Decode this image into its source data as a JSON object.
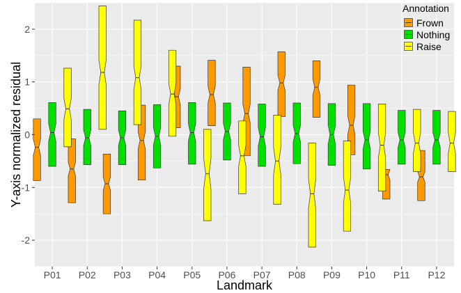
{
  "chart_data": {
    "type": "notched-boxplot",
    "title": "",
    "xlabel": "Landmark",
    "ylabel": "Y-axis normalized residual",
    "ylim": [
      -2.5,
      2.5
    ],
    "yticks": [
      -2,
      -1,
      0,
      1,
      2
    ],
    "grid": true,
    "legend_position": "top-right",
    "legend_title": "Annotation",
    "categories": [
      "P01",
      "P02",
      "P03",
      "P04",
      "P05",
      "P06",
      "P07",
      "P08",
      "P09",
      "P10",
      "P11",
      "P12"
    ],
    "series": [
      {
        "name": "Frown",
        "color": "#FF9900",
        "boxes": [
          {
            "q1": -0.87,
            "notch_low": -0.4,
            "median": -0.24,
            "notch_high": -0.08,
            "q3": 0.3
          },
          {
            "q1": -1.29,
            "notch_low": -0.78,
            "median": -0.65,
            "notch_high": -0.52,
            "q3": -0.08
          },
          {
            "q1": -1.5,
            "notch_low": -1.06,
            "median": -0.93,
            "notch_high": -0.8,
            "q3": -0.37
          },
          {
            "q1": -0.86,
            "notch_low": -0.28,
            "median": -0.11,
            "notch_high": 0.06,
            "q3": 0.56
          },
          {
            "q1": 0.13,
            "notch_low": 0.57,
            "median": 0.72,
            "notch_high": 0.87,
            "q3": 1.3
          },
          {
            "q1": 0.17,
            "notch_low": 0.6,
            "median": 0.76,
            "notch_high": 0.92,
            "q3": 1.41
          },
          {
            "q1": -0.4,
            "notch_low": 0.22,
            "median": 0.4,
            "notch_high": 0.58,
            "q3": 1.28
          },
          {
            "q1": 0.34,
            "notch_low": 0.83,
            "median": 0.98,
            "notch_high": 1.13,
            "q3": 1.57
          },
          {
            "q1": 0.33,
            "notch_low": 0.74,
            "median": 0.9,
            "notch_high": 1.06,
            "q3": 1.4
          },
          {
            "q1": -0.38,
            "notch_low": 0.0,
            "median": 0.18,
            "notch_high": 0.36,
            "q3": 0.94
          },
          {
            "q1": -1.22,
            "notch_low": -0.86,
            "median": -0.76,
            "notch_high": -0.66,
            "q3": -0.66
          },
          {
            "q1": -1.25,
            "notch_low": -0.9,
            "median": -0.8,
            "notch_high": -0.7,
            "q3": -0.3
          }
        ]
      },
      {
        "name": "Nothing",
        "color": "#00E000",
        "boxes": [
          {
            "q1": -0.6,
            "notch_low": -0.13,
            "median": 0.04,
            "notch_high": 0.21,
            "q3": 0.61
          },
          {
            "q1": -0.57,
            "notch_low": -0.21,
            "median": -0.06,
            "notch_high": 0.09,
            "q3": 0.48
          },
          {
            "q1": -0.57,
            "notch_low": -0.21,
            "median": -0.06,
            "notch_high": 0.09,
            "q3": 0.45
          },
          {
            "q1": -0.63,
            "notch_low": -0.2,
            "median": -0.03,
            "notch_high": 0.14,
            "q3": 0.57
          },
          {
            "q1": -0.56,
            "notch_low": -0.13,
            "median": 0.04,
            "notch_high": 0.21,
            "q3": 0.61
          },
          {
            "q1": -0.48,
            "notch_low": -0.1,
            "median": 0.06,
            "notch_high": 0.22,
            "q3": 0.6
          },
          {
            "q1": -0.6,
            "notch_low": -0.22,
            "median": -0.04,
            "notch_high": 0.14,
            "q3": 0.58
          },
          {
            "q1": -0.55,
            "notch_low": -0.14,
            "median": 0.02,
            "notch_high": 0.18,
            "q3": 0.6
          },
          {
            "q1": -0.58,
            "notch_low": -0.18,
            "median": 0.0,
            "notch_high": 0.18,
            "q3": 0.59
          },
          {
            "q1": -0.65,
            "notch_low": -0.27,
            "median": -0.1,
            "notch_high": 0.07,
            "q3": 0.59
          },
          {
            "q1": -0.56,
            "notch_low": -0.25,
            "median": -0.1,
            "notch_high": 0.05,
            "q3": 0.46
          },
          {
            "q1": -0.56,
            "notch_low": -0.24,
            "median": -0.1,
            "notch_high": 0.04,
            "q3": 0.46
          }
        ]
      },
      {
        "name": "Raise",
        "color": "#FFFF00",
        "boxes": [
          {
            "q1": -0.23,
            "notch_low": 0.29,
            "median": 0.49,
            "notch_high": 0.69,
            "q3": 1.26
          },
          {
            "q1": 0.1,
            "notch_low": 0.94,
            "median": 1.18,
            "notch_high": 1.42,
            "q3": 2.44
          },
          {
            "q1": 0.19,
            "notch_low": 0.86,
            "median": 1.08,
            "notch_high": 1.3,
            "q3": 2.17
          },
          {
            "q1": -0.03,
            "notch_low": 0.57,
            "median": 0.77,
            "notch_high": 0.97,
            "q3": 1.6
          },
          {
            "q1": -1.63,
            "notch_low": -1.03,
            "median": -0.74,
            "notch_high": -0.45,
            "q3": 0.1
          },
          {
            "q1": -1.12,
            "notch_low": -0.6,
            "median": -0.4,
            "notch_high": -0.2,
            "q3": 0.26
          },
          {
            "q1": -1.32,
            "notch_low": -0.76,
            "median": -0.5,
            "notch_high": -0.24,
            "q3": 0.37
          },
          {
            "q1": -2.13,
            "notch_low": -1.4,
            "median": -1.12,
            "notch_high": -0.84,
            "q3": -0.16
          },
          {
            "q1": -1.83,
            "notch_low": -1.3,
            "median": -1.05,
            "notch_high": -0.8,
            "q3": -0.12
          },
          {
            "q1": -1.07,
            "notch_low": -0.44,
            "median": -0.2,
            "notch_high": 0.04,
            "q3": 0.58
          },
          {
            "q1": -0.7,
            "notch_low": -0.36,
            "median": -0.16,
            "notch_high": 0.04,
            "q3": 0.48
          },
          {
            "q1": -0.7,
            "notch_low": -0.36,
            "median": -0.16,
            "notch_high": 0.04,
            "q3": 0.44
          }
        ]
      }
    ]
  }
}
